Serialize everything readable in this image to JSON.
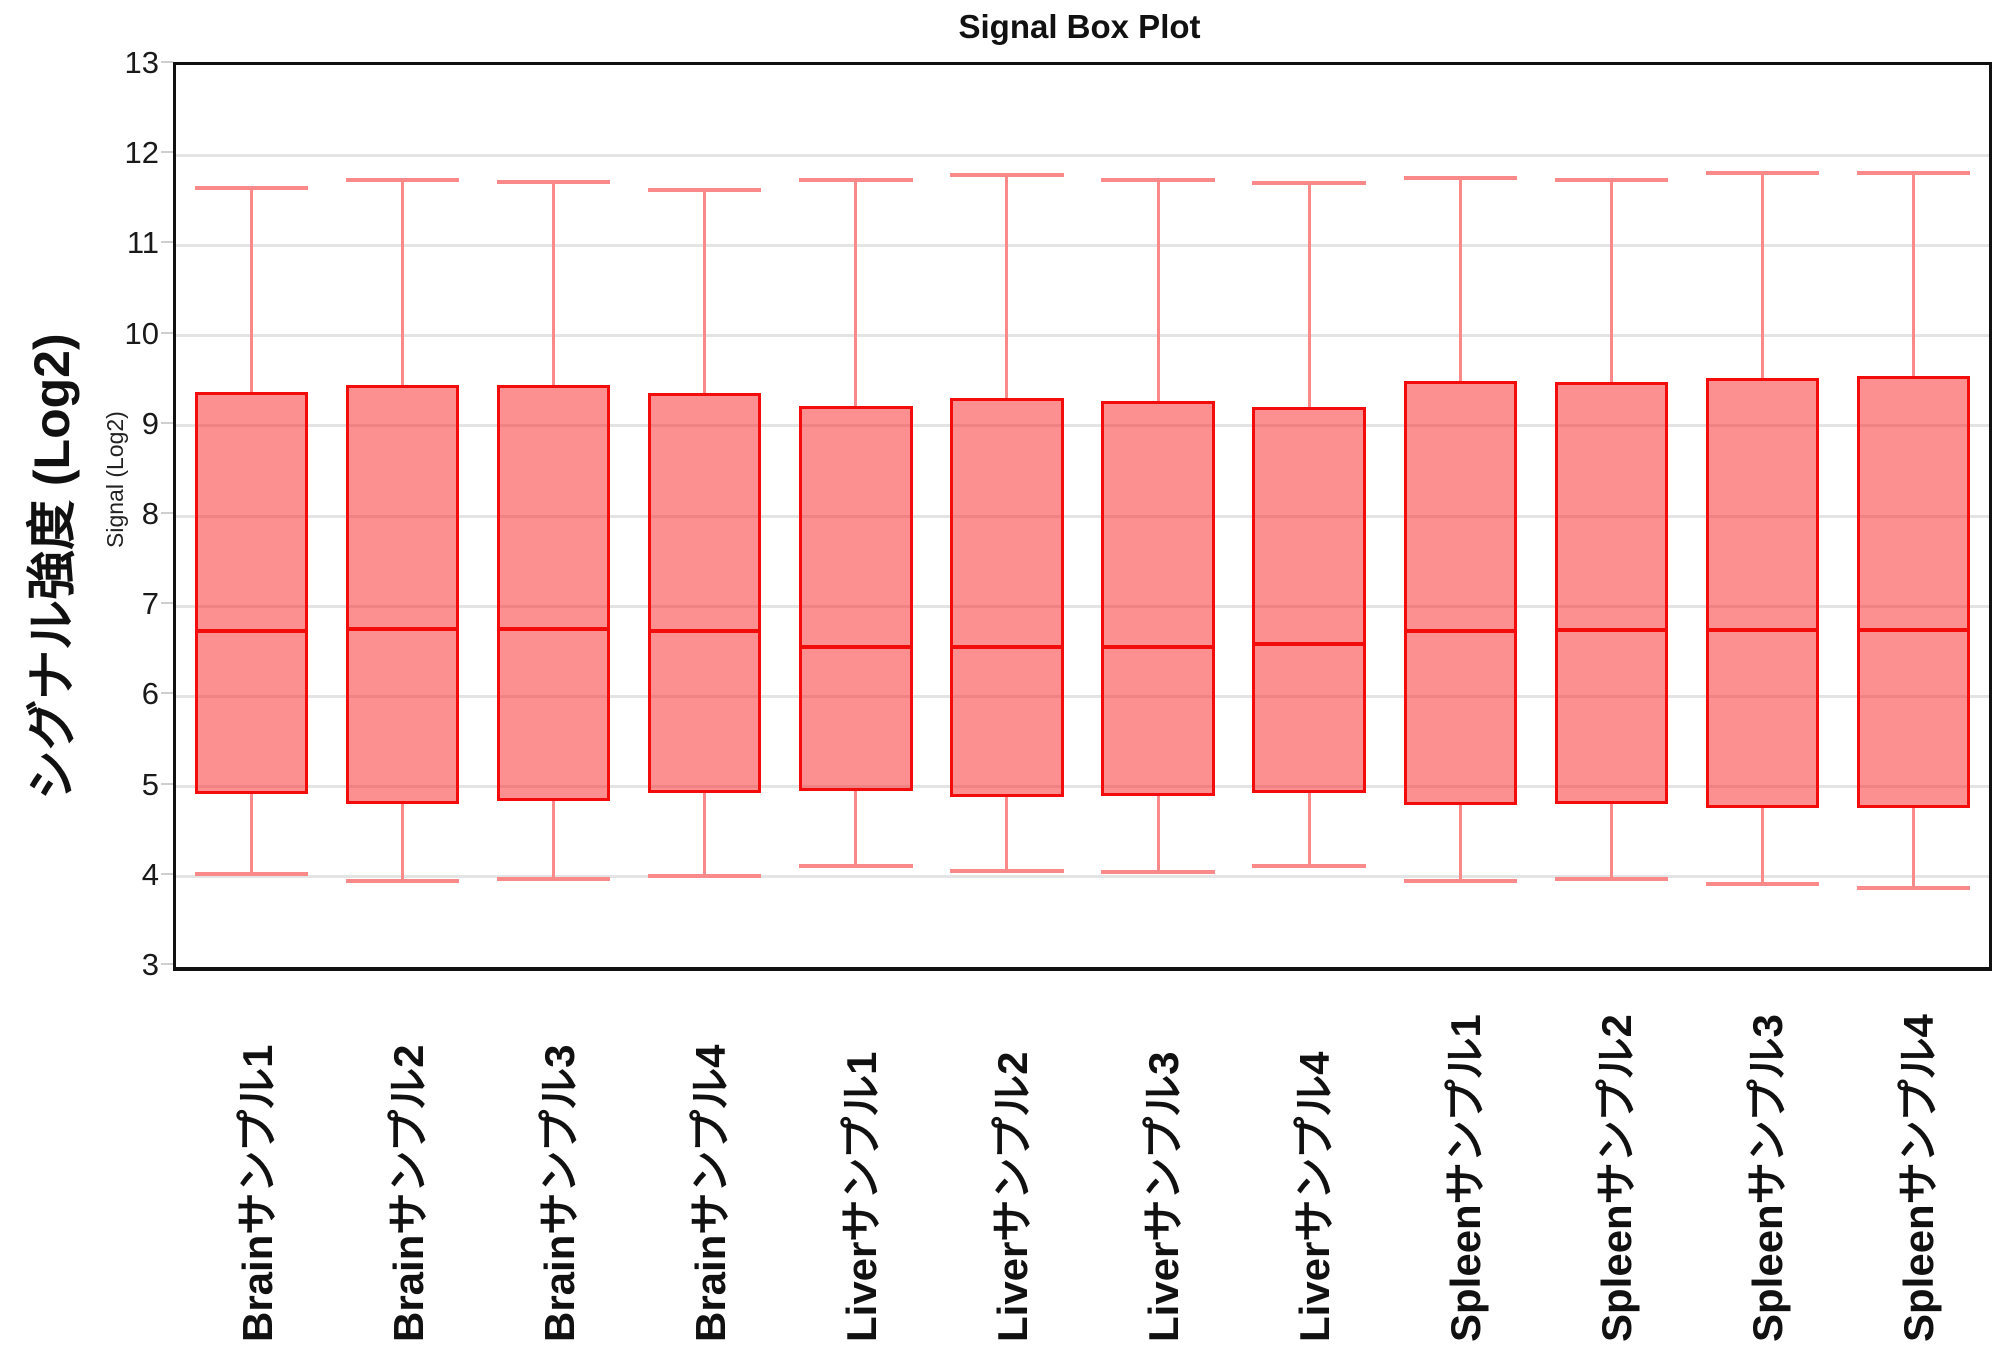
{
  "title": "Signal Box Plot",
  "colors": {
    "box_fill": "rgba(250,40,40,0.52)",
    "box_border": "#f20c0c",
    "median": "#f20c0c",
    "whisker": "#fa8a8a",
    "grid": "#e4e4e4",
    "axis": "#111111",
    "text": "#111111"
  },
  "chart_data": {
    "type": "boxplot",
    "title": "Signal Box Plot",
    "ylabel": "シグナル強度 (Log2)",
    "ylabel_secondary": "Signal (Log2)",
    "xlabel": "",
    "ylim": [
      3,
      13
    ],
    "yticks": [
      3,
      4,
      5,
      6,
      7,
      8,
      9,
      10,
      11,
      12,
      13
    ],
    "grid": true,
    "legend_position": "none",
    "x_tick_rotation_degrees": 90,
    "categories": [
      "Brainサンプル1",
      "Brainサンプル2",
      "Brainサンプル3",
      "Brainサンプル4",
      "Liverサンプル1",
      "Liverサンプル2",
      "Liverサンプル3",
      "Liverサンプル4",
      "Spleenサンプル1",
      "Spleenサンプル2",
      "Spleenサンプル3",
      "Spleenサンプル4"
    ],
    "boxes": [
      {
        "label": "Brainサンプル1",
        "whisker_low": 4.03,
        "q1": 4.92,
        "median": 6.72,
        "q3": 9.37,
        "whisker_high": 11.64
      },
      {
        "label": "Brainサンプル2",
        "whisker_low": 3.95,
        "q1": 4.81,
        "median": 6.75,
        "q3": 9.45,
        "whisker_high": 11.73
      },
      {
        "label": "Brainサンプル3",
        "whisker_low": 3.98,
        "q1": 4.84,
        "median": 6.75,
        "q3": 9.45,
        "whisker_high": 11.7
      },
      {
        "label": "Brainサンプル4",
        "whisker_low": 4.01,
        "q1": 4.93,
        "median": 6.73,
        "q3": 9.36,
        "whisker_high": 11.61
      },
      {
        "label": "Liverサンプル1",
        "whisker_low": 4.12,
        "q1": 4.95,
        "median": 6.55,
        "q3": 9.22,
        "whisker_high": 11.73
      },
      {
        "label": "Liverサンプル2",
        "whisker_low": 4.06,
        "q1": 4.89,
        "median": 6.55,
        "q3": 9.31,
        "whisker_high": 11.78
      },
      {
        "label": "Liverサンプル3",
        "whisker_low": 4.05,
        "q1": 4.9,
        "median": 6.55,
        "q3": 9.28,
        "whisker_high": 11.72
      },
      {
        "label": "Liverサンプル4",
        "whisker_low": 4.12,
        "q1": 4.93,
        "median": 6.58,
        "q3": 9.21,
        "whisker_high": 11.69
      },
      {
        "label": "Spleenサンプル1",
        "whisker_low": 3.95,
        "q1": 4.8,
        "median": 6.72,
        "q3": 9.5,
        "whisker_high": 11.75
      },
      {
        "label": "Spleenサンプル2",
        "whisker_low": 3.98,
        "q1": 4.81,
        "median": 6.74,
        "q3": 9.49,
        "whisker_high": 11.72
      },
      {
        "label": "Spleenサンプル3",
        "whisker_low": 3.92,
        "q1": 4.76,
        "median": 6.74,
        "q3": 9.53,
        "whisker_high": 11.8
      },
      {
        "label": "Spleenサンプル4",
        "whisker_low": 3.88,
        "q1": 4.76,
        "median": 6.74,
        "q3": 9.55,
        "whisker_high": 11.8
      }
    ]
  }
}
